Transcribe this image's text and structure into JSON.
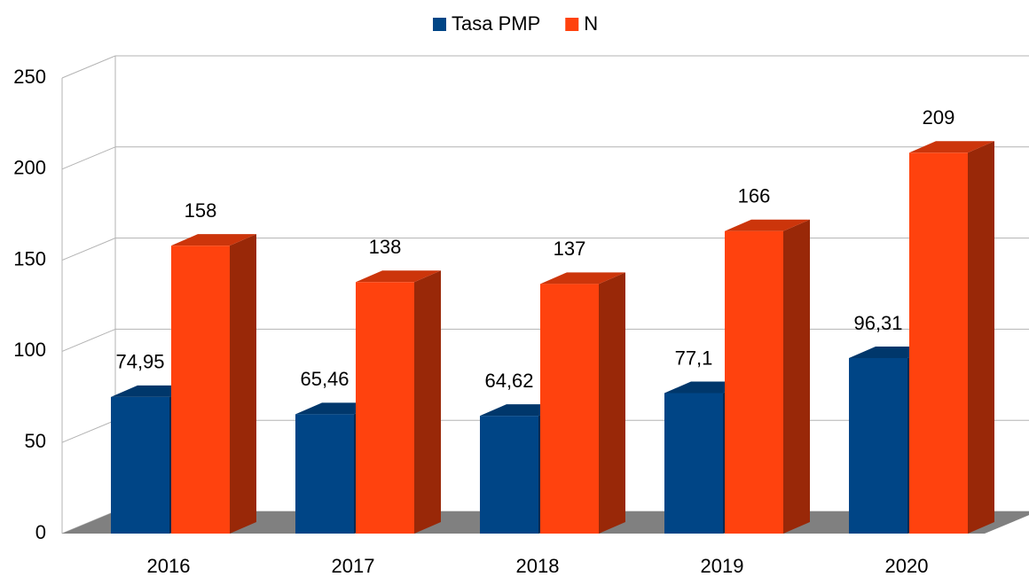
{
  "chart_data": {
    "type": "bar3d",
    "categories": [
      "2016",
      "2017",
      "2018",
      "2019",
      "2020"
    ],
    "series": [
      {
        "name": "Tasa PMP",
        "color": "#004586",
        "values": [
          74.95,
          65.46,
          64.62,
          77.1,
          96.31
        ],
        "value_labels": [
          "74,95",
          "65,46",
          "64,62",
          "77,1",
          "96,31"
        ]
      },
      {
        "name": "N",
        "color": "#ff420e",
        "values": [
          158,
          138,
          137,
          166,
          209
        ]
      }
    ],
    "ylim": [
      0,
      250
    ],
    "yticks": [
      0,
      50,
      100,
      150,
      200,
      250
    ],
    "grid": true,
    "legend": "top"
  }
}
